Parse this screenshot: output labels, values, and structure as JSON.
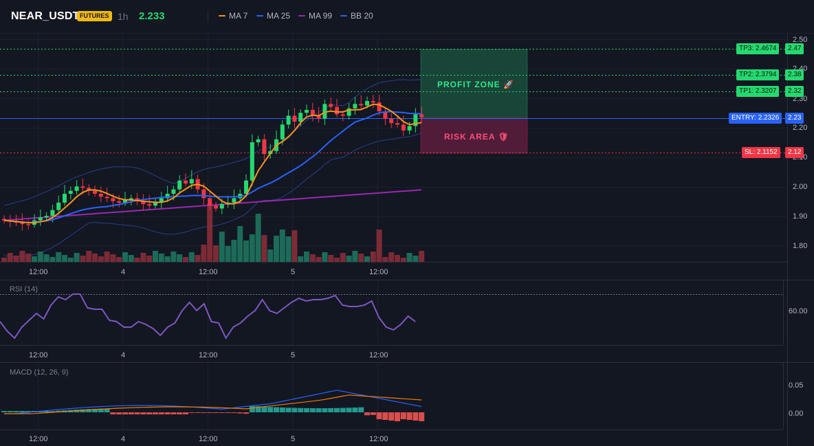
{
  "header": {
    "symbol": "NEAR_USDT",
    "market_badge": "FUTURES",
    "interval": "1h",
    "last_price": "2.233",
    "legend": [
      {
        "label": "MA 7",
        "color": "#f7931a"
      },
      {
        "label": "MA 25",
        "color": "#2962ff"
      },
      {
        "label": "MA 99",
        "color": "#9c27b0"
      },
      {
        "label": "BB 20",
        "color": "#2a3e8a"
      }
    ]
  },
  "colors": {
    "up": "#26d96e",
    "down": "#f23645",
    "background": "#131722"
  },
  "price_axis": {
    "labels": [
      "2.50",
      "2.40",
      "2.30",
      "2.20",
      "2.10",
      "2.00",
      "1.90",
      "1.80"
    ]
  },
  "time_axis": {
    "labels": [
      "12:00",
      "4",
      "12:00",
      "5",
      "12:00"
    ]
  },
  "levels": {
    "tp3": {
      "label": "TP3: 2.4674",
      "value": 2.4674,
      "axis_label": "2.47"
    },
    "tp2": {
      "label": "TP2: 2.3794",
      "value": 2.3794,
      "axis_label": "2.38"
    },
    "tp1": {
      "label": "TP1: 2.3207",
      "value": 2.3207,
      "axis_label": "2.32"
    },
    "entry": {
      "label": "ENTRY: 2.2326",
      "value": 2.2326,
      "axis_label": "2.23"
    },
    "sl": {
      "label": "SL: 2.1152",
      "value": 2.1152,
      "axis_label": "2.12"
    }
  },
  "zones": {
    "profit": "PROFIT ZONE 🚀",
    "risk": "RISK AREA 🛡"
  },
  "rsi": {
    "title": "RSI (14)",
    "axis_labels": [
      "60.00"
    ]
  },
  "macd": {
    "title": "MACD (12, 26, 9)",
    "axis_labels": [
      "0.05",
      "0.00"
    ]
  }
}
